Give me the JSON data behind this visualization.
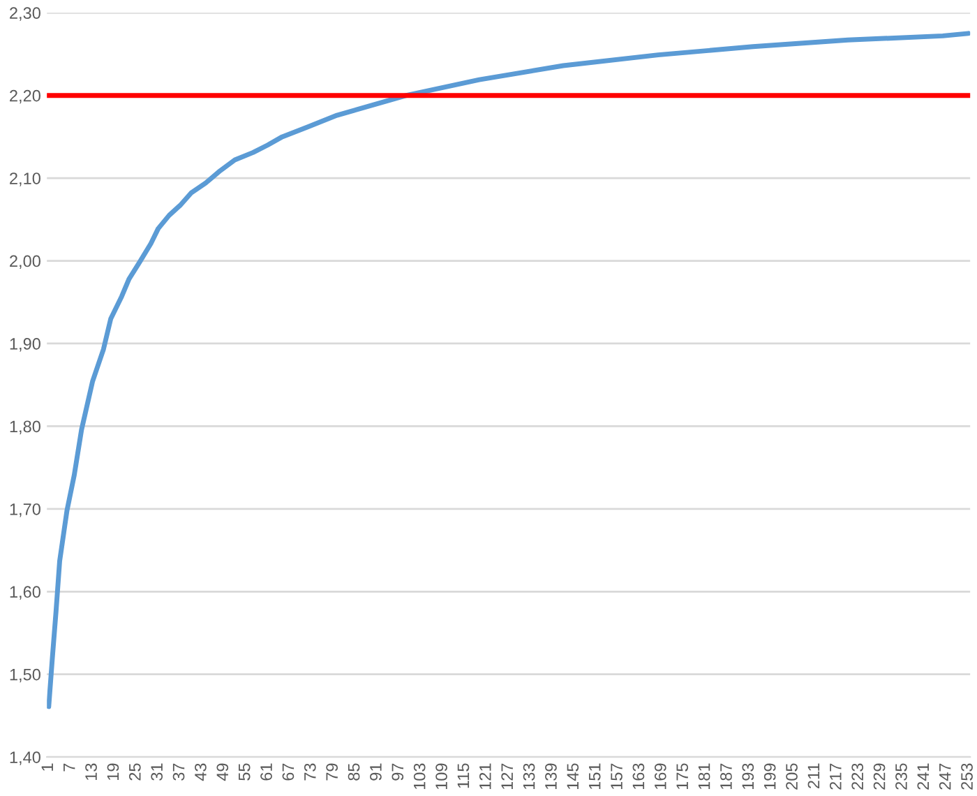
{
  "chart_data": {
    "type": "line",
    "xlim": [
      0.5,
      253.5
    ],
    "xticks": [
      1,
      7,
      13,
      19,
      25,
      31,
      37,
      43,
      49,
      55,
      61,
      67,
      73,
      79,
      85,
      91,
      97,
      103,
      109,
      115,
      121,
      127,
      133,
      139,
      145,
      151,
      157,
      163,
      169,
      175,
      181,
      187,
      193,
      199,
      205,
      211,
      217,
      223,
      229,
      235,
      241,
      247,
      253
    ],
    "ylim": [
      1.4,
      2.3
    ],
    "yticks": [
      {
        "value": 1.4,
        "label": "1,40"
      },
      {
        "value": 1.5,
        "label": "1,50"
      },
      {
        "value": 1.6,
        "label": "1,60"
      },
      {
        "value": 1.7,
        "label": "1,70"
      },
      {
        "value": 1.8,
        "label": "1,80"
      },
      {
        "value": 1.9,
        "label": "1,90"
      },
      {
        "value": 2.0,
        "label": "2,00"
      },
      {
        "value": 2.1,
        "label": "2,10"
      },
      {
        "value": 2.2,
        "label": "2,20"
      },
      {
        "value": 2.3,
        "label": "2,30"
      }
    ],
    "grid": "y",
    "series": [
      {
        "color": "#5b9bd5",
        "x": [
          1,
          2,
          3,
          4,
          6,
          8,
          10,
          13,
          16,
          18,
          21,
          23,
          26,
          29,
          31,
          34,
          37,
          40,
          44,
          48,
          52,
          57,
          61,
          65,
          72,
          80,
          99,
          119,
          142,
          168,
          194,
          220,
          246,
          253
        ],
        "values": [
          1.461,
          1.52,
          1.576,
          1.637,
          1.698,
          1.741,
          1.796,
          1.854,
          1.893,
          1.93,
          1.957,
          1.978,
          1.999,
          2.021,
          2.039,
          2.055,
          2.067,
          2.082,
          2.094,
          2.109,
          2.122,
          2.131,
          2.14,
          2.15,
          2.162,
          2.176,
          2.2,
          2.219,
          2.236,
          2.249,
          2.259,
          2.267,
          2.272,
          2.275
        ]
      }
    ],
    "ref_lines": [
      {
        "axis": "y",
        "value": 2.2,
        "color": "#ff0000",
        "line_style": "solid"
      }
    ]
  }
}
